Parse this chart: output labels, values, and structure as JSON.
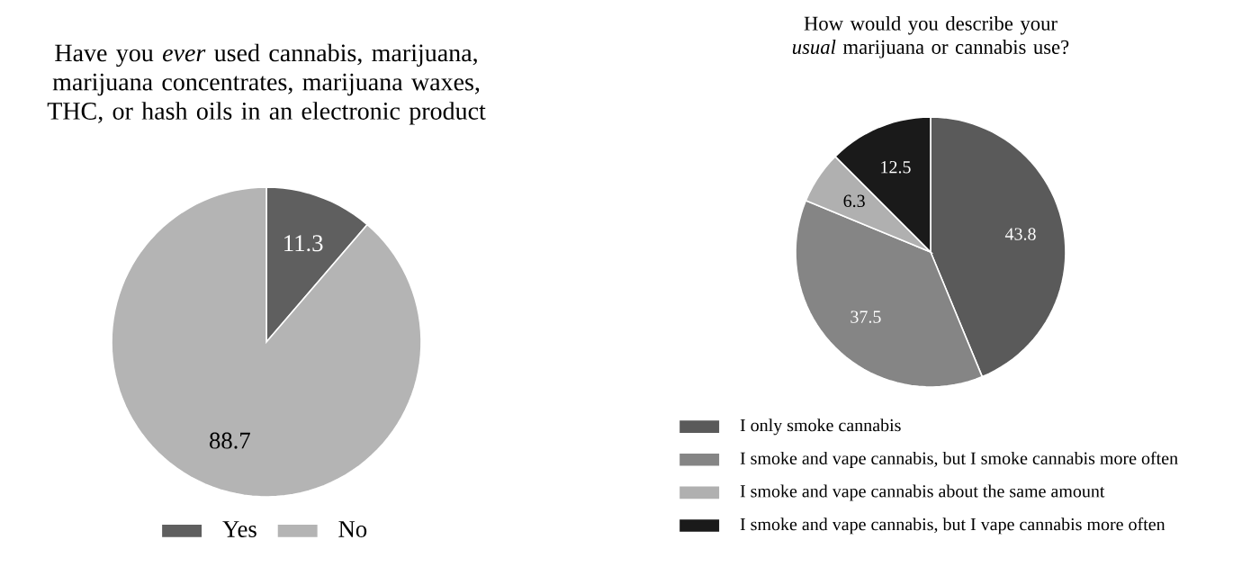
{
  "chart_data": [
    {
      "type": "pie",
      "title": "Have you *ever* used cannabis, marijuana, marijuana concentrates, marijuana waxes, THC, or hash oils in an electronic product",
      "categories": [
        "Yes",
        "No"
      ],
      "values": [
        11.3,
        88.7
      ],
      "colors": [
        "#5f5f5f",
        "#b4b4b4"
      ],
      "data_labels": true,
      "legend": "bottom"
    },
    {
      "type": "pie",
      "title": "How would you describe your *usual* marijuana or cannabis use?",
      "categories": [
        "I only smoke cannabis",
        "I smoke and vape cannabis, but I smoke cannabis more often",
        "I smoke and vape cannabis about the same amount",
        "I smoke and vape cannabis, but I vape cannabis more often"
      ],
      "values": [
        43.8,
        37.5,
        6.3,
        12.5
      ],
      "colors": [
        "#5a5a5a",
        "#858585",
        "#b0b0b0",
        "#1a1a1a"
      ],
      "data_labels": true,
      "legend": "bottom"
    }
  ]
}
